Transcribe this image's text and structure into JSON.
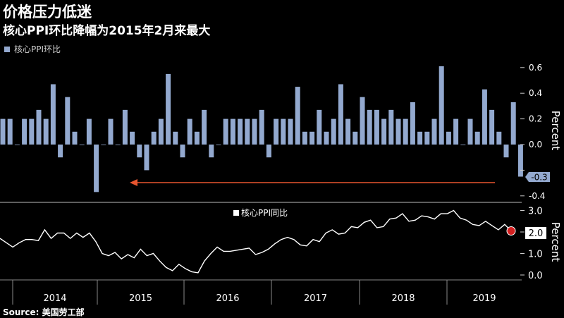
{
  "title": "价格压力低迷",
  "subtitle": "核心PPI环比降幅为2015年2月来最大",
  "source": "Source: 美国劳工部",
  "colors": {
    "bar": "#93a9cf",
    "line": "#ffffff",
    "arrow": "#e8552f",
    "marker": "#d42020",
    "callout": "#93a9cf"
  },
  "chart_data": [
    {
      "type": "bar",
      "legend": "核心PPI环比",
      "ylabel": "Percent",
      "ylim": [
        -0.4,
        0.6
      ],
      "yticks": [
        "0.6",
        "0.4",
        "0.2",
        "0.0",
        "-0.2",
        "-0.4"
      ],
      "last_value_label": "-0.3",
      "values": [
        0.2,
        0.2,
        0.0,
        0.2,
        0.2,
        0.27,
        0.2,
        0.47,
        -0.1,
        0.37,
        0.1,
        0.0,
        0.2,
        -0.37,
        0.0,
        0.2,
        0.0,
        0.27,
        0.1,
        -0.1,
        -0.2,
        0.1,
        0.2,
        0.55,
        0.1,
        -0.1,
        0.2,
        0.1,
        0.27,
        -0.1,
        0.0,
        0.2,
        0.2,
        0.2,
        0.2,
        0.2,
        0.27,
        -0.1,
        0.2,
        0.2,
        0.2,
        0.45,
        0.1,
        0.1,
        0.27,
        0.1,
        0.2,
        0.47,
        0.2,
        0.1,
        0.37,
        0.27,
        0.27,
        0.2,
        0.27,
        0.2,
        0.2,
        0.33,
        0.1,
        0.1,
        0.2,
        0.61,
        0.1,
        0.2,
        0.0,
        0.2,
        0.1,
        0.43,
        0.27,
        0.1,
        -0.1,
        0.33,
        -0.25
      ]
    },
    {
      "type": "line",
      "legend": "核心PPI同比",
      "ylabel": "Percent",
      "ylim": [
        0.0,
        3.0
      ],
      "yticks": [
        "3.0",
        "2.0",
        "1.0",
        "0.0"
      ],
      "last_value_label": "2.0",
      "x_labels": [
        "2014",
        "2015",
        "2016",
        "2017",
        "2018",
        "2019"
      ],
      "values": [
        1.7,
        1.5,
        1.3,
        1.5,
        1.65,
        1.65,
        1.6,
        2.1,
        1.7,
        1.95,
        1.95,
        1.7,
        1.95,
        1.75,
        1.95,
        1.55,
        1.0,
        0.9,
        1.05,
        0.75,
        0.95,
        0.8,
        1.2,
        0.9,
        1.0,
        0.65,
        0.35,
        0.2,
        0.5,
        0.3,
        0.15,
        0.1,
        0.65,
        1.0,
        1.3,
        1.1,
        1.1,
        1.15,
        1.2,
        1.25,
        0.95,
        1.05,
        1.2,
        1.45,
        1.65,
        1.75,
        1.65,
        1.4,
        1.35,
        1.65,
        1.55,
        1.95,
        2.1,
        1.9,
        1.95,
        2.25,
        2.2,
        2.45,
        2.55,
        2.2,
        2.25,
        2.6,
        2.65,
        2.85,
        2.5,
        2.55,
        2.75,
        2.7,
        2.6,
        2.85,
        2.85,
        3.0,
        2.65,
        2.55,
        2.35,
        2.3,
        2.5,
        2.3,
        2.1,
        2.35,
        2.05
      ]
    }
  ]
}
